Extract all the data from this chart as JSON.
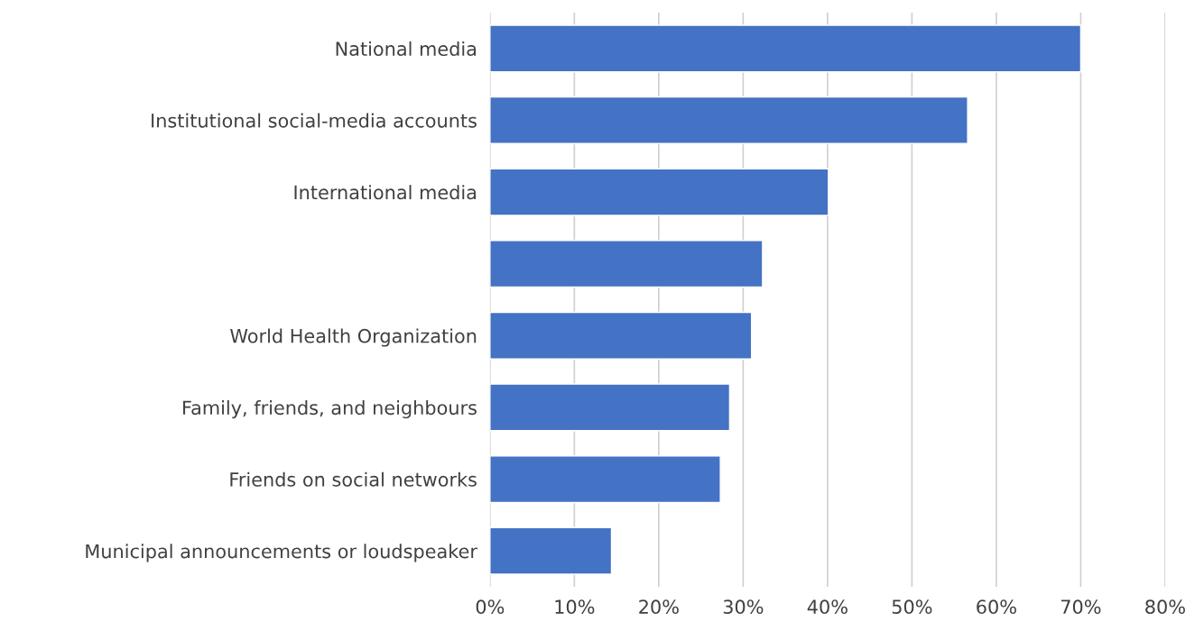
{
  "chart_data": {
    "type": "bar",
    "orientation": "horizontal",
    "categories": [
      "National media",
      "Institutional social-media accounts",
      "International media",
      null,
      "World Health Organization",
      "Family, friends, and neighbours",
      "Friends on social networks",
      "Municipal announcements or loudspeaker"
    ],
    "values": [
      70,
      56.6,
      40.1,
      32.3,
      31.0,
      28.4,
      27.3,
      14.4
    ],
    "color": "#4472c4",
    "xlim": [
      0,
      80
    ],
    "xticks": [
      {
        "value": 0,
        "label": "0%"
      },
      {
        "value": 10,
        "label": "10%"
      },
      {
        "value": 20,
        "label": "20%"
      },
      {
        "value": 30,
        "label": "30%"
      },
      {
        "value": 40,
        "label": "40%"
      },
      {
        "value": 50,
        "label": "50%"
      },
      {
        "value": 60,
        "label": "60%"
      },
      {
        "value": 70,
        "label": "70%"
      },
      {
        "value": 80,
        "label": "80%"
      }
    ],
    "grid": "x"
  }
}
